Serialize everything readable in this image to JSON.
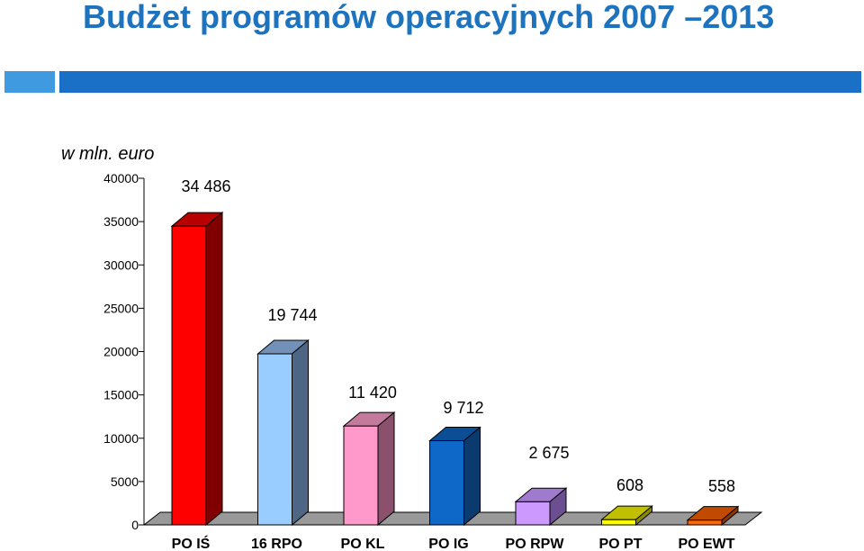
{
  "header": {
    "title": "Budżet programów operacyjnych 2007 –2013",
    "accent_light": "#3f9ae0",
    "accent_dark": "#1a6fc6",
    "title_color": "#1e73be"
  },
  "chart_data": {
    "type": "bar",
    "unit_label": "w mln. euro",
    "categories": [
      "PO IŚ",
      "16 RPO",
      "PO KL",
      "PO IG",
      "PO RPW",
      "PO PT",
      "PO EWT"
    ],
    "values": [
      34486,
      19744,
      11420,
      9712,
      2675,
      608,
      558
    ],
    "data_labels": [
      "34 486",
      "19 744",
      "11 420",
      "9 712",
      "2 675",
      "608",
      "558"
    ],
    "ylim": [
      0,
      40000
    ],
    "yticks": [
      0,
      5000,
      10000,
      15000,
      20000,
      25000,
      30000,
      35000,
      40000
    ],
    "grid": false,
    "style": "3d",
    "colors": [
      {
        "front": "#ff0000",
        "top": "#b80000",
        "side": "#800000"
      },
      {
        "front": "#99ccff",
        "top": "#7390b8",
        "side": "#4d6685"
      },
      {
        "front": "#ff99cc",
        "top": "#c47a9c",
        "side": "#8a506c"
      },
      {
        "front": "#0e68c8",
        "top": "#0b4e96",
        "side": "#0a3a6e"
      },
      {
        "front": "#cc99ff",
        "top": "#a07acc",
        "side": "#6c4f91"
      },
      {
        "front": "#ffff00",
        "top": "#c0c000",
        "side": "#8a8a00"
      },
      {
        "front": "#ff6600",
        "top": "#c04a00",
        "side": "#8a3500"
      }
    ],
    "floor_color": "#999999"
  }
}
